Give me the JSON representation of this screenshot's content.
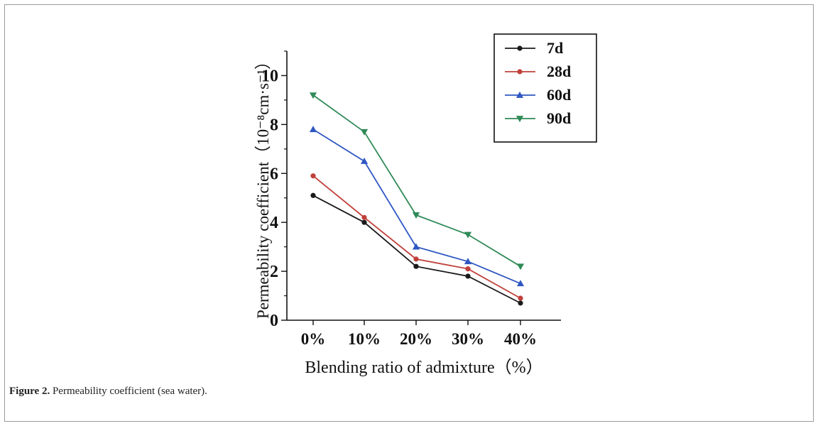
{
  "caption": {
    "label": "Figure 2.",
    "text": " Permeability coefficient (sea water)."
  },
  "chart_data": {
    "type": "line",
    "title": "",
    "xlabel": "Blending ratio of admixture（%）",
    "ylabel": "Permeability coefficient（10⁻⁸cm·s⁻¹）",
    "categories": [
      "0%",
      "10%",
      "20%",
      "30%",
      "40%"
    ],
    "ylim": [
      0,
      11
    ],
    "yticks": [
      0,
      2,
      4,
      6,
      8,
      10
    ],
    "grid": false,
    "legend_position": "top-right",
    "series": [
      {
        "name": "7d",
        "color": "#1a1a1a",
        "marker": "circle",
        "values": [
          5.1,
          4.0,
          2.2,
          1.8,
          0.7
        ]
      },
      {
        "name": "28d",
        "color": "#c0403a",
        "marker": "circle",
        "values": [
          5.9,
          4.2,
          2.5,
          2.1,
          0.9
        ]
      },
      {
        "name": "60d",
        "color": "#2f57c2",
        "marker": "triangle-up",
        "values": [
          7.8,
          6.5,
          3.0,
          2.4,
          1.5
        ]
      },
      {
        "name": "90d",
        "color": "#2f8a57",
        "marker": "triangle-down",
        "values": [
          9.2,
          7.7,
          4.3,
          3.5,
          2.2
        ]
      }
    ]
  }
}
